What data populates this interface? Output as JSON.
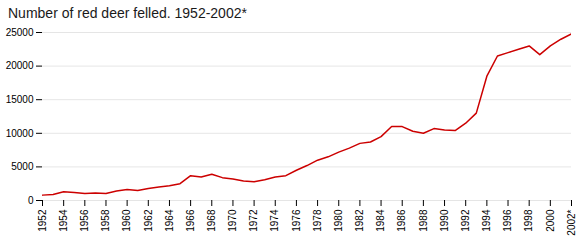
{
  "chart_data": {
    "type": "line",
    "title": "Number of red deer felled. 1952-2002*",
    "color": "#cc0000",
    "x": [
      1952,
      1953,
      1954,
      1955,
      1956,
      1957,
      1958,
      1959,
      1960,
      1961,
      1962,
      1963,
      1964,
      1965,
      1966,
      1967,
      1968,
      1969,
      1970,
      1971,
      1972,
      1973,
      1974,
      1975,
      1976,
      1977,
      1978,
      1979,
      1980,
      1981,
      1982,
      1983,
      1984,
      1985,
      1986,
      1987,
      1988,
      1989,
      1990,
      1991,
      1992,
      1993,
      1994,
      1995,
      1996,
      1997,
      1998,
      1999,
      2000,
      2001,
      2002
    ],
    "values": [
      800,
      900,
      1300,
      1200,
      1050,
      1100,
      1050,
      1400,
      1650,
      1500,
      1800,
      2000,
      2200,
      2500,
      3700,
      3500,
      3900,
      3400,
      3200,
      2900,
      2800,
      3100,
      3500,
      3700,
      4500,
      5200,
      6000,
      6500,
      7200,
      7800,
      8500,
      8700,
      9500,
      11000,
      11000,
      10300,
      10000,
      10700,
      10500,
      10400,
      11500,
      13000,
      18500,
      21500,
      22000,
      22500,
      23000,
      21700,
      23000,
      24000,
      24800
    ],
    "xlim": [
      1952,
      2002
    ],
    "xticks": [
      1952,
      1954,
      1956,
      1958,
      1960,
      1962,
      1964,
      1966,
      1968,
      1970,
      1972,
      1974,
      1976,
      1978,
      1980,
      1982,
      1984,
      1986,
      1988,
      1990,
      1992,
      1994,
      1996,
      1998,
      2000,
      {
        "value": 2002,
        "label": "2002*"
      }
    ],
    "ylim": [
      0,
      25000
    ],
    "yticks": [
      0,
      5000,
      10000,
      15000,
      20000,
      25000
    ],
    "grid": "y"
  }
}
